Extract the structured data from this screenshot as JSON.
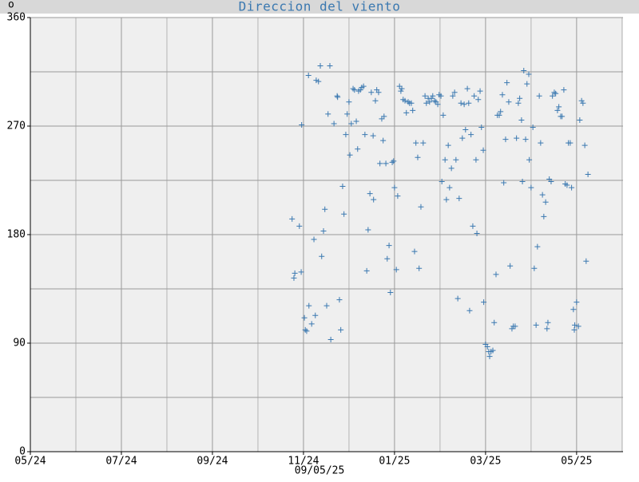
{
  "corner_label": "o",
  "chart_data": {
    "type": "scatter",
    "title": "Direccion del viento",
    "date_label": "09/05/25",
    "marker": "+",
    "color": "#3a78b0",
    "grid": true,
    "xlim": [
      0,
      13.02
    ],
    "ylim": [
      0,
      360
    ],
    "xticks": [
      {
        "value": 0,
        "label": "05/24"
      },
      {
        "value": 2,
        "label": "07/24"
      },
      {
        "value": 4,
        "label": "09/24"
      },
      {
        "value": 6,
        "label": "11/24"
      },
      {
        "value": 8,
        "label": "01/25"
      },
      {
        "value": 10,
        "label": "03/25"
      },
      {
        "value": 12,
        "label": "05/25"
      }
    ],
    "xminor": [
      1,
      3,
      5,
      7,
      9,
      11,
      13
    ],
    "yticks": [
      0,
      90,
      180,
      270,
      360
    ],
    "yminor": [
      45,
      135,
      225,
      315
    ],
    "x": [
      5.75,
      5.79,
      5.81,
      5.91,
      5.95,
      5.96,
      6.02,
      6.04,
      6.07,
      6.11,
      6.12,
      6.18,
      6.23,
      6.26,
      6.28,
      6.33,
      6.37,
      6.4,
      6.44,
      6.47,
      6.51,
      6.54,
      6.58,
      6.6,
      6.67,
      6.74,
      6.75,
      6.79,
      6.82,
      6.86,
      6.89,
      6.93,
      6.96,
      7.0,
      7.02,
      7.05,
      7.09,
      7.12,
      7.16,
      7.19,
      7.21,
      7.25,
      7.28,
      7.32,
      7.35,
      7.39,
      7.42,
      7.46,
      7.49,
      7.53,
      7.54,
      7.58,
      7.61,
      7.65,
      7.68,
      7.72,
      7.75,
      7.77,
      7.81,
      7.84,
      7.88,
      7.91,
      7.95,
      7.98,
      8.0,
      8.04,
      8.07,
      8.11,
      8.14,
      8.16,
      8.19,
      8.23,
      8.26,
      8.3,
      8.33,
      8.37,
      8.4,
      8.44,
      8.47,
      8.51,
      8.54,
      8.58,
      8.63,
      8.67,
      8.7,
      8.74,
      8.77,
      8.81,
      8.84,
      8.88,
      8.91,
      8.95,
      8.98,
      9.02,
      9.04,
      9.07,
      9.11,
      9.14,
      9.18,
      9.21,
      9.25,
      9.28,
      9.32,
      9.35,
      9.39,
      9.42,
      9.46,
      9.49,
      9.53,
      9.56,
      9.6,
      9.63,
      9.65,
      9.68,
      9.72,
      9.75,
      9.79,
      9.81,
      9.84,
      9.88,
      9.91,
      9.95,
      9.96,
      10.0,
      10.04,
      10.07,
      10.09,
      10.12,
      10.16,
      10.19,
      10.23,
      10.26,
      10.3,
      10.33,
      10.37,
      10.4,
      10.44,
      10.47,
      10.51,
      10.54,
      10.58,
      10.61,
      10.65,
      10.68,
      10.72,
      10.75,
      10.79,
      10.81,
      10.84,
      10.88,
      10.91,
      10.95,
      10.96,
      11.0,
      11.04,
      11.07,
      11.11,
      11.14,
      11.18,
      11.21,
      11.25,
      11.28,
      11.32,
      11.35,
      11.37,
      11.4,
      11.44,
      11.47,
      11.51,
      11.54,
      11.58,
      11.61,
      11.65,
      11.68,
      11.72,
      11.75,
      11.79,
      11.82,
      11.86,
      11.89,
      11.93,
      11.95,
      11.96,
      12.0,
      12.04,
      12.07,
      12.11,
      12.14,
      12.18,
      12.21,
      12.25
    ],
    "values": [
      193,
      144,
      148,
      187,
      149,
      271,
      111,
      101,
      100,
      312,
      121,
      106,
      176,
      113,
      308,
      307,
      320,
      162,
      183,
      201,
      121,
      280,
      320,
      93,
      272,
      295,
      294,
      126,
      101,
      220,
      197,
      263,
      280,
      290,
      246,
      272,
      301,
      300,
      274,
      251,
      299,
      300,
      302,
      303,
      263,
      150,
      184,
      214,
      298,
      262,
      209,
      291,
      300,
      298,
      239,
      276,
      258,
      278,
      239,
      160,
      171,
      132,
      240,
      241,
      219,
      151,
      212,
      303,
      299,
      301,
      292,
      291,
      281,
      290,
      289,
      289,
      283,
      166,
      256,
      244,
      152,
      203,
      256,
      295,
      289,
      293,
      290,
      293,
      295,
      291,
      290,
      288,
      296,
      295,
      224,
      279,
      242,
      209,
      254,
      219,
      235,
      295,
      298,
      242,
      127,
      210,
      289,
      260,
      288,
      267,
      301,
      289,
      117,
      263,
      187,
      295,
      242,
      181,
      292,
      299,
      269,
      250,
      124,
      89,
      87,
      83,
      79,
      83,
      84,
      107,
      147,
      279,
      279,
      282,
      296,
      223,
      259,
      306,
      290,
      154,
      102,
      104,
      104,
      260,
      289,
      293,
      275,
      224,
      316,
      259,
      305,
      313,
      242,
      219,
      269,
      152,
      105,
      170,
      295,
      256,
      213,
      195,
      207,
      102,
      107,
      226,
      224,
      295,
      298,
      297,
      283,
      286,
      278,
      278,
      300,
      222,
      221,
      256,
      256,
      219,
      118,
      101,
      105,
      124,
      104,
      275,
      291,
      289,
      254,
      158,
      230
    ]
  }
}
